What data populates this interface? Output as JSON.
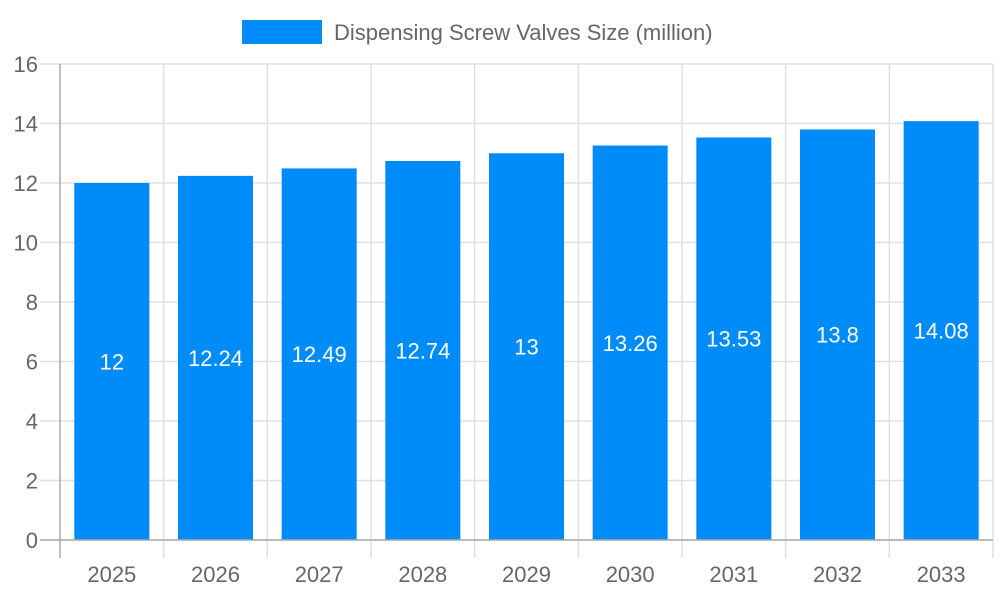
{
  "chart_data": {
    "type": "bar",
    "title": "",
    "xlabel": "",
    "ylabel": "",
    "categories": [
      "2025",
      "2026",
      "2027",
      "2028",
      "2029",
      "2030",
      "2031",
      "2032",
      "2033"
    ],
    "series": [
      {
        "name": "Dispensing Screw Valves Size (million)",
        "values": [
          12,
          12.24,
          12.49,
          12.74,
          13,
          13.26,
          13.53,
          13.8,
          14.08
        ],
        "color": "#008cf8"
      }
    ],
    "data_labels": [
      "12",
      "12.24",
      "12.49",
      "12.74",
      "13",
      "13.26",
      "13.53",
      "13.8",
      "14.08"
    ],
    "ylim": [
      0,
      16
    ],
    "yticks": [
      "0",
      "2",
      "4",
      "6",
      "8",
      "10",
      "12",
      "14",
      "16"
    ],
    "grid": true,
    "legend_position": "top"
  }
}
